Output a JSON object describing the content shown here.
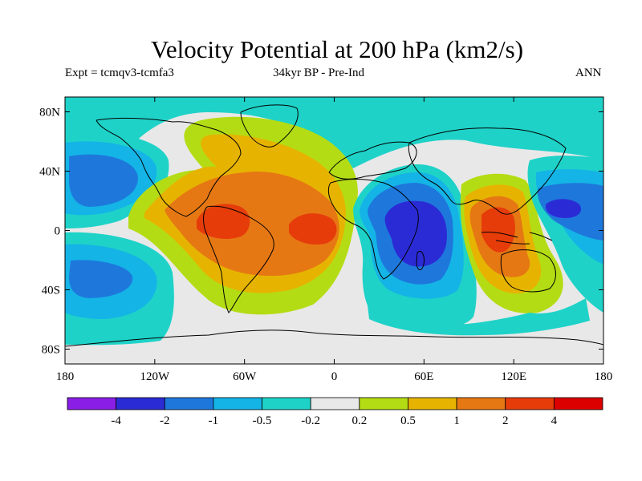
{
  "title": "Velocity Potential at 200 hPa (km2/s)",
  "subtitle_left": "Expt = tcmqv3-tcmfa3",
  "subtitle_center": "34kyr BP - Pre-Ind",
  "subtitle_right": "ANN",
  "axes": {
    "lon_ticks": [
      {
        "value": -180,
        "label": "180"
      },
      {
        "value": -120,
        "label": "120W"
      },
      {
        "value": -60,
        "label": "60W"
      },
      {
        "value": 0,
        "label": "0"
      },
      {
        "value": 60,
        "label": "60E"
      },
      {
        "value": 120,
        "label": "120E"
      },
      {
        "value": 180,
        "label": "180"
      }
    ],
    "lat_ticks": [
      {
        "value": 80,
        "label": "80N"
      },
      {
        "value": 40,
        "label": "40N"
      },
      {
        "value": 0,
        "label": "0"
      },
      {
        "value": -40,
        "label": "40S"
      },
      {
        "value": -80,
        "label": "80S"
      }
    ],
    "lon_range": [
      -180,
      180
    ],
    "lat_range": [
      -90,
      90
    ]
  },
  "colorbar": {
    "colors": [
      "#8a1ee6",
      "#2b2bd6",
      "#1e78dc",
      "#14b4e6",
      "#1ed2c8",
      "#e8e8e8",
      "#b4dc14",
      "#e6b400",
      "#e67814",
      "#e63c0a",
      "#dc0000"
    ],
    "labels": [
      "-4",
      "-2",
      "-1",
      "-0.5",
      "-0.2",
      "0.2",
      "0.5",
      "1",
      "2",
      "4"
    ]
  },
  "chart_data": {
    "type": "heatmap",
    "title": "Velocity Potential at 200 hPa (km2/s)",
    "levels": [
      -4,
      -2,
      -1,
      -0.5,
      -0.2,
      0.2,
      0.5,
      1,
      2,
      4
    ],
    "regions": [
      {
        "lon": -120,
        "lat": 10,
        "value": 0.3
      },
      {
        "lon": -40,
        "lat": 20,
        "value": 1.3
      },
      {
        "lon": -67,
        "lat": 3,
        "value": 2.2
      },
      {
        "lon": -18,
        "lat": 2,
        "value": 2.2
      },
      {
        "lon": -30,
        "lat": 60,
        "value": 0.7
      },
      {
        "lon": 30,
        "lat": 60,
        "value": -0.3
      },
      {
        "lon": 48,
        "lat": -8,
        "value": -2.5
      },
      {
        "lon": 50,
        "lat": 20,
        "value": -0.8
      },
      {
        "lon": 108,
        "lat": 0,
        "value": 2.2
      },
      {
        "lon": 108,
        "lat": -30,
        "value": 0.7
      },
      {
        "lon": 160,
        "lat": 15,
        "value": -2.2
      },
      {
        "lon": 160,
        "lat": 50,
        "value": -0.3
      },
      {
        "lon": -165,
        "lat": 35,
        "value": -1.1
      },
      {
        "lon": -160,
        "lat": -30,
        "value": -0.7
      },
      {
        "lon": -90,
        "lat": -70,
        "value": 0.0
      },
      {
        "lon": 20,
        "lat": -60,
        "value": -0.3
      },
      {
        "lon": 150,
        "lat": -60,
        "value": -0.3
      }
    ]
  }
}
